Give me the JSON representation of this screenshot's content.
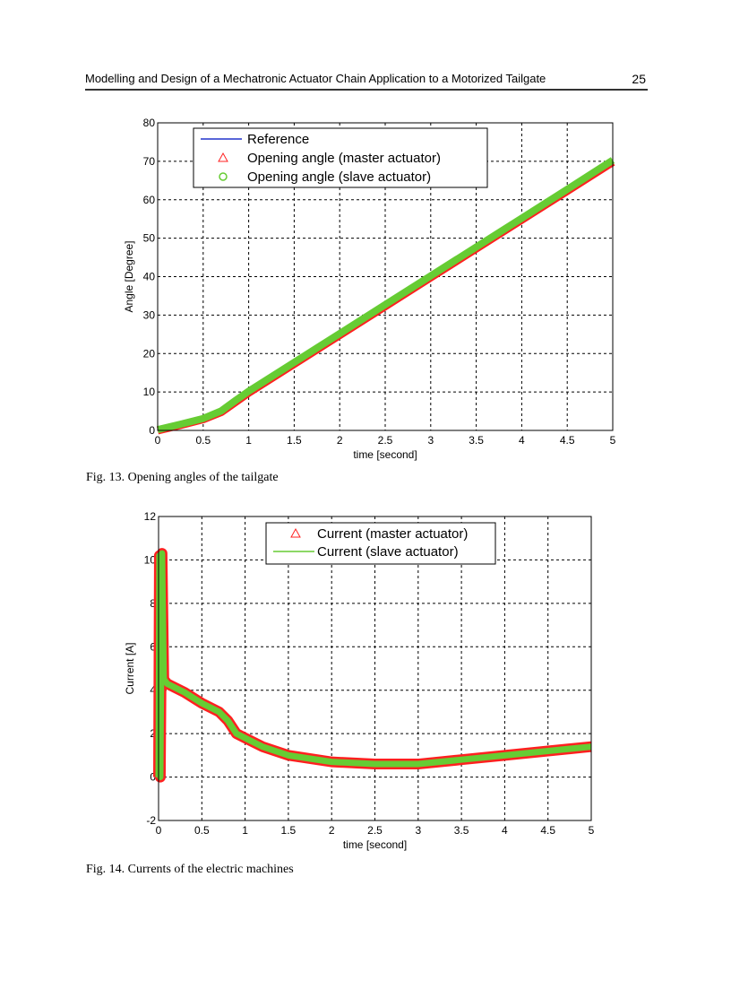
{
  "header": {
    "title": "Modelling and Design of a Mechatronic Actuator Chain Application to a Motorized Tailgate",
    "page_number": "25"
  },
  "figures": [
    {
      "caption": "Fig. 13. Opening angles of the tailgate"
    },
    {
      "caption": "Fig. 14. Currents of the electric machines"
    }
  ],
  "chart_data": [
    {
      "type": "line",
      "title": "",
      "xlabel": "time [second]",
      "ylabel": "Angle [Degree]",
      "xlim": [
        0,
        5
      ],
      "ylim": [
        0,
        80
      ],
      "xticks": [
        "0",
        "0.5",
        "1",
        "1.5",
        "2",
        "2.5",
        "3",
        "3.5",
        "4",
        "4.5",
        "5"
      ],
      "yticks": [
        "0",
        "10",
        "20",
        "30",
        "40",
        "50",
        "60",
        "70",
        "80"
      ],
      "grid": true,
      "legend_position": "top-left",
      "x": [
        0,
        0.25,
        0.5,
        0.7,
        0.85,
        1,
        1.5,
        2,
        2.5,
        3,
        3.5,
        4,
        4.5,
        5
      ],
      "series": [
        {
          "name": "Reference",
          "color": "#2233cc",
          "marker": "none",
          "values": [
            0,
            1.5,
            3,
            5,
            7.5,
            10,
            17.5,
            25,
            32.5,
            40,
            47.5,
            55,
            62.5,
            70
          ]
        },
        {
          "name": "Opening angle (master actuator)",
          "color": "#ff2020",
          "marker": "triangle",
          "values": [
            0,
            1.4,
            2.9,
            4.8,
            7.3,
            9.8,
            17.3,
            24.8,
            32.3,
            39.8,
            47.3,
            54.8,
            62.3,
            69.8
          ]
        },
        {
          "name": "Opening angle (slave actuator)",
          "color": "#66cc33",
          "marker": "circle",
          "values": [
            0.2,
            1.6,
            3.1,
            5.1,
            7.7,
            10.2,
            17.7,
            25.2,
            32.7,
            40.2,
            47.7,
            55.2,
            62.7,
            70.3
          ]
        }
      ]
    },
    {
      "type": "line",
      "title": "",
      "xlabel": "time [second]",
      "ylabel": "Current [A]",
      "xlim": [
        0,
        5
      ],
      "ylim": [
        -2,
        12
      ],
      "xticks": [
        "0",
        "0.5",
        "1",
        "1.5",
        "2",
        "2.5",
        "3",
        "3.5",
        "4",
        "4.5",
        "5"
      ],
      "yticks": [
        "-2",
        "0",
        "2",
        "4",
        "6",
        "8",
        "10",
        "12"
      ],
      "grid": true,
      "legend_position": "top-right",
      "x": [
        0,
        0.01,
        0.02,
        0.04,
        0.06,
        0.1,
        0.3,
        0.5,
        0.7,
        0.8,
        0.9,
        1.0,
        1.2,
        1.5,
        2.0,
        2.5,
        3.0,
        3.5,
        4.0,
        4.5,
        5.0
      ],
      "series": [
        {
          "name": "Current (master actuator)",
          "color": "#ff2020",
          "marker": "triangle",
          "values": [
            0,
            10.2,
            0,
            10.3,
            4.5,
            4.3,
            3.9,
            3.4,
            3.0,
            2.6,
            2.0,
            1.8,
            1.4,
            1.0,
            0.7,
            0.6,
            0.6,
            0.8,
            1.0,
            1.2,
            1.4
          ]
        },
        {
          "name": "Current (slave actuator)",
          "color": "#66cc33",
          "marker": "none",
          "values": [
            0,
            10.2,
            0,
            10.3,
            4.5,
            4.3,
            3.9,
            3.4,
            3.0,
            2.6,
            2.0,
            1.8,
            1.4,
            1.0,
            0.7,
            0.6,
            0.6,
            0.8,
            1.0,
            1.2,
            1.4
          ]
        }
      ]
    }
  ]
}
